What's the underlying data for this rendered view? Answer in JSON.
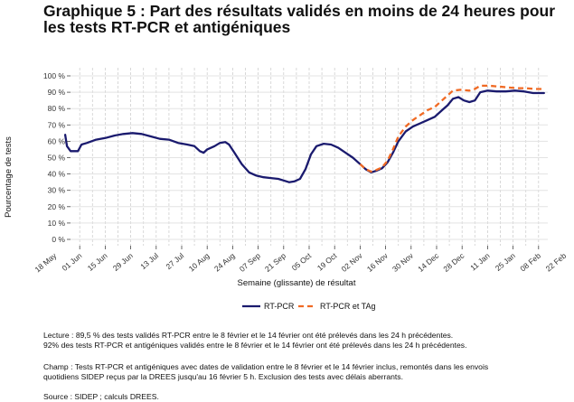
{
  "title_lines": [
    "Graphique 5 : Part des résultats validés en moins de 24 heures pour",
    "les tests RT-PCR et antigéniques"
  ],
  "notes": {
    "lecture_1": "Lecture : 89,5 % des tests validés RT-PCR entre le 8 février et le 14 février ont été prélevés dans les 24 h précédentes.",
    "lecture_2": "92% des tests RT-PCR et antigéniques validés entre le 8 février et le 14 février ont été prélevés dans les 24 h précédentes.",
    "champ_1": "Champ : Tests RT-PCR et antigéniques avec dates de validation entre le 8 février et le 14 février inclus, remontés dans les envois",
    "champ_2": "quotidiens SIDEP reçus par la DREES jusqu'au 16 février 5 h. Exclusion des tests avec délais aberrants.",
    "source": "Source : SIDEP ; calculs DREES."
  },
  "chart_data": {
    "type": "line",
    "xlabel": "Semaine (glissante) de résultat",
    "ylabel": "Pourcentage de tests",
    "x_ticks": [
      "18 May",
      "01 Jun",
      "15 Jun",
      "29 Jun",
      "13 Jul",
      "27 Jul",
      "10 Aug",
      "24 Aug",
      "07 Sep",
      "21 Sep",
      "05 Oct",
      "19 Oct",
      "02 Nov",
      "16 Nov",
      "30 Nov",
      "14 Dec",
      "28 Dec",
      "11 Jan",
      "25 Jan",
      "08 Feb",
      "22 Feb"
    ],
    "y_ticks": [
      "0 %",
      "10 %",
      "20 %",
      "30 %",
      "40 %",
      "50 %",
      "60 %",
      "70 %",
      "80 %",
      "90 %",
      "100 %"
    ],
    "ylim": [
      0,
      100
    ],
    "grid": true,
    "legend_position": "bottom",
    "series": [
      {
        "name": "RT-PCR",
        "color": "#1a1a6e",
        "style": "solid",
        "points": [
          [
            "2020-05-24",
            64
          ],
          [
            "2020-05-25",
            57
          ],
          [
            "2020-05-27",
            54
          ],
          [
            "2020-05-31",
            54
          ],
          [
            "2020-06-02",
            58
          ],
          [
            "2020-06-05",
            59
          ],
          [
            "2020-06-10",
            61
          ],
          [
            "2020-06-15",
            62
          ],
          [
            "2020-06-20",
            63.5
          ],
          [
            "2020-06-25",
            64.5
          ],
          [
            "2020-06-30",
            65
          ],
          [
            "2020-07-05",
            64.5
          ],
          [
            "2020-07-10",
            63
          ],
          [
            "2020-07-15",
            61.5
          ],
          [
            "2020-07-20",
            61
          ],
          [
            "2020-07-25",
            59
          ],
          [
            "2020-07-30",
            58
          ],
          [
            "2020-08-03",
            57
          ],
          [
            "2020-08-06",
            54
          ],
          [
            "2020-08-08",
            53
          ],
          [
            "2020-08-10",
            55
          ],
          [
            "2020-08-14",
            57
          ],
          [
            "2020-08-17",
            59
          ],
          [
            "2020-08-20",
            59.5
          ],
          [
            "2020-08-22",
            58
          ],
          [
            "2020-08-25",
            53
          ],
          [
            "2020-08-29",
            46
          ],
          [
            "2020-09-02",
            41
          ],
          [
            "2020-09-06",
            39
          ],
          [
            "2020-09-10",
            38
          ],
          [
            "2020-09-14",
            37.5
          ],
          [
            "2020-09-18",
            37
          ],
          [
            "2020-09-21",
            36
          ],
          [
            "2020-09-24",
            35
          ],
          [
            "2020-09-27",
            35.5
          ],
          [
            "2020-09-30",
            37
          ],
          [
            "2020-10-03",
            43
          ],
          [
            "2020-10-06",
            52
          ],
          [
            "2020-10-09",
            57
          ],
          [
            "2020-10-13",
            58.5
          ],
          [
            "2020-10-17",
            58
          ],
          [
            "2020-10-21",
            56
          ],
          [
            "2020-10-25",
            53
          ],
          [
            "2020-10-29",
            50
          ],
          [
            "2020-11-02",
            46
          ],
          [
            "2020-11-05",
            43
          ],
          [
            "2020-11-08",
            41
          ],
          [
            "2020-11-11",
            42
          ],
          [
            "2020-11-14",
            43.5
          ],
          [
            "2020-11-17",
            47
          ],
          [
            "2020-11-20",
            53
          ],
          [
            "2020-11-23",
            60
          ],
          [
            "2020-11-27",
            66
          ],
          [
            "2020-12-01",
            69
          ],
          [
            "2020-12-05",
            71
          ],
          [
            "2020-12-09",
            73
          ],
          [
            "2020-12-13",
            75
          ],
          [
            "2020-12-17",
            79
          ],
          [
            "2020-12-20",
            82
          ],
          [
            "2020-12-23",
            86
          ],
          [
            "2020-12-26",
            87
          ],
          [
            "2020-12-29",
            85
          ],
          [
            "2021-01-01",
            84
          ],
          [
            "2021-01-04",
            85
          ],
          [
            "2021-01-07",
            90
          ],
          [
            "2021-01-11",
            91
          ],
          [
            "2021-01-16",
            90.5
          ],
          [
            "2021-01-21",
            90.5
          ],
          [
            "2021-01-26",
            91
          ],
          [
            "2021-01-31",
            90.5
          ],
          [
            "2021-02-05",
            89.5
          ],
          [
            "2021-02-11",
            89.5
          ]
        ]
      },
      {
        "name": "RT-PCR et TAg",
        "color": "#f06a24",
        "style": "dashed",
        "points": [
          [
            "2020-11-02",
            46
          ],
          [
            "2020-11-05",
            43
          ],
          [
            "2020-11-08",
            41.5
          ],
          [
            "2020-11-11",
            42.5
          ],
          [
            "2020-11-14",
            44
          ],
          [
            "2020-11-17",
            48
          ],
          [
            "2020-11-20",
            55
          ],
          [
            "2020-11-23",
            63
          ],
          [
            "2020-11-27",
            69
          ],
          [
            "2020-12-01",
            73
          ],
          [
            "2020-12-05",
            76
          ],
          [
            "2020-12-09",
            79
          ],
          [
            "2020-12-13",
            81
          ],
          [
            "2020-12-17",
            85
          ],
          [
            "2020-12-20",
            88
          ],
          [
            "2020-12-23",
            91
          ],
          [
            "2020-12-27",
            91.5
          ],
          [
            "2021-01-01",
            91
          ],
          [
            "2021-01-04",
            92
          ],
          [
            "2021-01-07",
            94
          ],
          [
            "2021-01-12",
            94
          ],
          [
            "2021-01-17",
            93.5
          ],
          [
            "2021-01-22",
            93
          ],
          [
            "2021-01-27",
            92.5
          ],
          [
            "2021-02-01",
            92.5
          ],
          [
            "2021-02-06",
            92
          ],
          [
            "2021-02-11",
            92
          ]
        ]
      }
    ]
  }
}
